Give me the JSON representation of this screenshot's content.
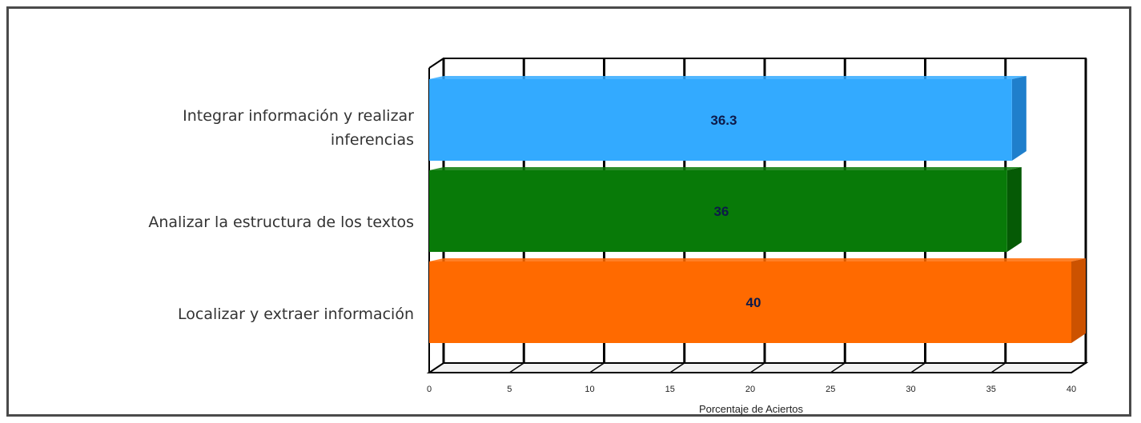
{
  "chart_data": {
    "type": "bar",
    "orientation": "horizontal",
    "categories": [
      "Integrar información y realizar inferencias",
      "Analizar la estructura de los textos",
      "Localizar y extraer información"
    ],
    "category_lines": [
      [
        "Integrar información y realizar",
        "inferencias"
      ],
      [
        "Analizar la estructura de los textos"
      ],
      [
        "Localizar y extraer información"
      ]
    ],
    "values": [
      36.3,
      36,
      40
    ],
    "value_labels": [
      "36.3",
      "36",
      "40"
    ],
    "colors": [
      "#33aaff",
      "#087a08",
      "#ff6a00"
    ],
    "side_colors": [
      "#1f7fcc",
      "#055a05",
      "#cc5200"
    ],
    "xlabel": "Porcentaje de Aciertos",
    "xlim": [
      0,
      40
    ],
    "xticks": [
      "0",
      "5",
      "10",
      "15",
      "20",
      "25",
      "30",
      "35",
      "40"
    ],
    "grid": true,
    "legend": "none"
  }
}
